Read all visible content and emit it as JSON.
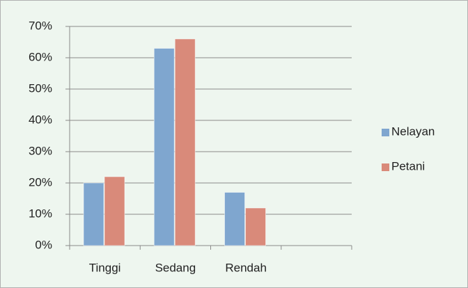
{
  "chart_data": {
    "type": "bar",
    "categories": [
      "Tinggi",
      "Sedang",
      "Rendah",
      null
    ],
    "series": [
      {
        "name": "Nelayan",
        "color": "#7fa6cf",
        "values": [
          20,
          63,
          17,
          null
        ]
      },
      {
        "name": "Petani",
        "color": "#d98a7a",
        "values": [
          22,
          66,
          12,
          null
        ]
      }
    ],
    "ylim": [
      0,
      70
    ],
    "yticks": [
      {
        "value": 0,
        "label": "0%"
      },
      {
        "value": 10,
        "label": "10%"
      },
      {
        "value": 20,
        "label": "20%"
      },
      {
        "value": 30,
        "label": "30%"
      },
      {
        "value": 40,
        "label": "40%"
      },
      {
        "value": 50,
        "label": "50%"
      },
      {
        "value": 60,
        "label": "60%"
      },
      {
        "value": 70,
        "label": "70%"
      }
    ],
    "grid": true,
    "legend": "right"
  }
}
